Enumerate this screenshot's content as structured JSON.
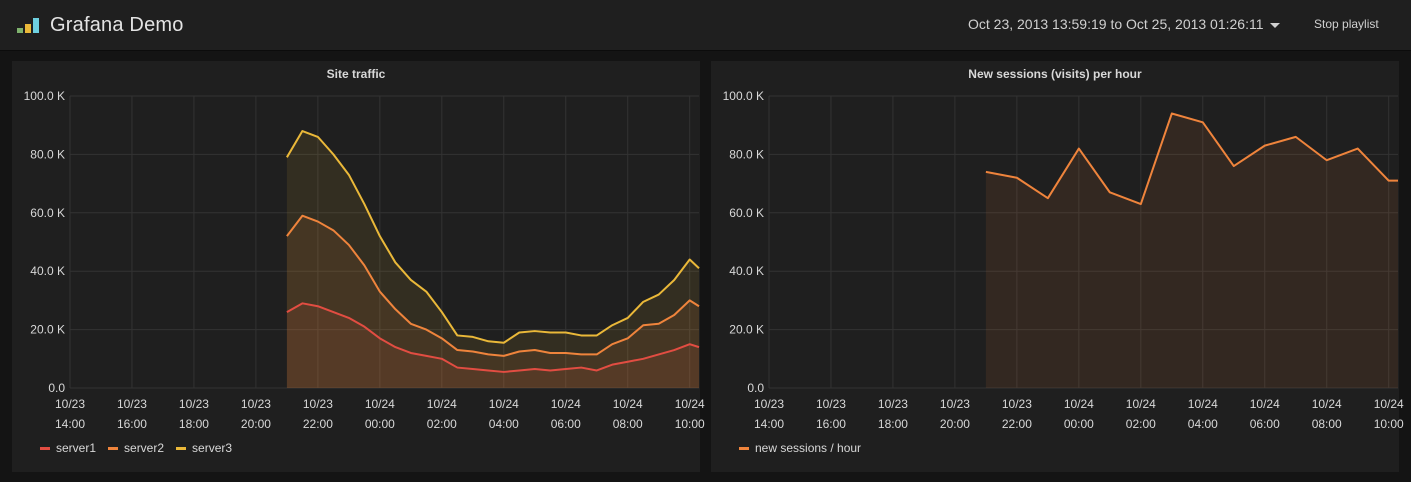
{
  "header": {
    "title": "Grafana Demo",
    "time_range": "Oct 23, 2013 13:59:19 to Oct 25, 2013 01:26:11",
    "stop_playlist": "Stop playlist",
    "logo_colors": [
      "#7eb26d",
      "#eab839",
      "#6ed0e0"
    ]
  },
  "panels": [
    {
      "title": "Site traffic"
    },
    {
      "title": "New sessions (visits) per hour"
    }
  ],
  "chart_data": [
    {
      "type": "area",
      "title": "Site traffic",
      "x_unit": "hours since 10/23 14:00",
      "xlim": [
        0,
        20.3
      ],
      "ylim": [
        0,
        100000
      ],
      "yticks": [
        "0.0",
        "20.0 K",
        "40.0 K",
        "60.0 K",
        "80.0 K",
        "100.0 K"
      ],
      "xticks": [
        {
          "date": "10/23",
          "time": "14:00"
        },
        {
          "date": "10/23",
          "time": "16:00"
        },
        {
          "date": "10/23",
          "time": "18:00"
        },
        {
          "date": "10/23",
          "time": "20:00"
        },
        {
          "date": "10/23",
          "time": "22:00"
        },
        {
          "date": "10/24",
          "time": "00:00"
        },
        {
          "date": "10/24",
          "time": "02:00"
        },
        {
          "date": "10/24",
          "time": "04:00"
        },
        {
          "date": "10/24",
          "time": "06:00"
        },
        {
          "date": "10/24",
          "time": "08:00"
        },
        {
          "date": "10/24",
          "time": "10:00"
        }
      ],
      "legend_position": "bottom-left",
      "series": [
        {
          "name": "server1",
          "color": "#e24d42",
          "x": [
            7.0,
            7.5,
            8.0,
            8.5,
            9.0,
            9.5,
            10.0,
            10.5,
            11.0,
            11.5,
            12.0,
            12.5,
            13.0,
            13.5,
            14.0,
            14.5,
            15.0,
            15.5,
            16.0,
            16.5,
            17.0,
            17.5,
            18.0,
            18.5,
            19.0,
            19.5,
            20.0,
            20.3
          ],
          "values": [
            26000,
            29000,
            28000,
            26000,
            24000,
            21000,
            17000,
            14000,
            12000,
            11000,
            10000,
            7000,
            6500,
            6000,
            5500,
            6000,
            6500,
            6000,
            6500,
            7000,
            6000,
            8000,
            9000,
            10000,
            11500,
            13000,
            15000,
            14000
          ]
        },
        {
          "name": "server2",
          "color": "#ef843c",
          "x": [
            7.0,
            7.5,
            8.0,
            8.5,
            9.0,
            9.5,
            10.0,
            10.5,
            11.0,
            11.5,
            12.0,
            12.5,
            13.0,
            13.5,
            14.0,
            14.5,
            15.0,
            15.5,
            16.0,
            16.5,
            17.0,
            17.5,
            18.0,
            18.5,
            19.0,
            19.5,
            20.0,
            20.3
          ],
          "values": [
            52000,
            59000,
            57000,
            54000,
            49000,
            42000,
            33000,
            27000,
            22000,
            20000,
            17000,
            13000,
            12500,
            11500,
            11000,
            12500,
            13000,
            12000,
            12000,
            11500,
            11500,
            15000,
            17000,
            21500,
            22000,
            25000,
            30000,
            28000
          ]
        },
        {
          "name": "server3",
          "color": "#eab839",
          "x": [
            7.0,
            7.5,
            8.0,
            8.5,
            9.0,
            9.5,
            10.0,
            10.5,
            11.0,
            11.5,
            12.0,
            12.5,
            13.0,
            13.5,
            14.0,
            14.5,
            15.0,
            15.5,
            16.0,
            16.5,
            17.0,
            17.5,
            18.0,
            18.5,
            19.0,
            19.5,
            20.0,
            20.3
          ],
          "values": [
            79000,
            88000,
            86000,
            80000,
            73000,
            63000,
            52000,
            43000,
            37000,
            33000,
            26000,
            18000,
            17500,
            16000,
            15500,
            19000,
            19500,
            19000,
            19000,
            18000,
            18000,
            21500,
            24000,
            29500,
            32000,
            37000,
            44000,
            41000
          ]
        }
      ]
    },
    {
      "type": "area",
      "title": "New sessions (visits) per hour",
      "x_unit": "hours since 10/23 14:00",
      "xlim": [
        0,
        20.3
      ],
      "ylim": [
        0,
        100000
      ],
      "yticks": [
        "0.0",
        "20.0 K",
        "40.0 K",
        "60.0 K",
        "80.0 K",
        "100.0 K"
      ],
      "xticks": [
        {
          "date": "10/23",
          "time": "14:00"
        },
        {
          "date": "10/23",
          "time": "16:00"
        },
        {
          "date": "10/23",
          "time": "18:00"
        },
        {
          "date": "10/23",
          "time": "20:00"
        },
        {
          "date": "10/23",
          "time": "22:00"
        },
        {
          "date": "10/24",
          "time": "00:00"
        },
        {
          "date": "10/24",
          "time": "02:00"
        },
        {
          "date": "10/24",
          "time": "04:00"
        },
        {
          "date": "10/24",
          "time": "06:00"
        },
        {
          "date": "10/24",
          "time": "08:00"
        },
        {
          "date": "10/24",
          "time": "10:00"
        }
      ],
      "legend_position": "bottom-left",
      "series": [
        {
          "name": "new sessions / hour",
          "color": "#ef843c",
          "x": [
            7.0,
            8.0,
            9.0,
            10.0,
            11.0,
            12.0,
            13.0,
            14.0,
            15.0,
            16.0,
            17.0,
            18.0,
            19.0,
            20.0,
            20.3
          ],
          "values": [
            74000,
            72000,
            65000,
            82000,
            67000,
            63000,
            94000,
            91000,
            76000,
            83000,
            86000,
            78000,
            82000,
            71000,
            71000
          ]
        }
      ]
    }
  ]
}
